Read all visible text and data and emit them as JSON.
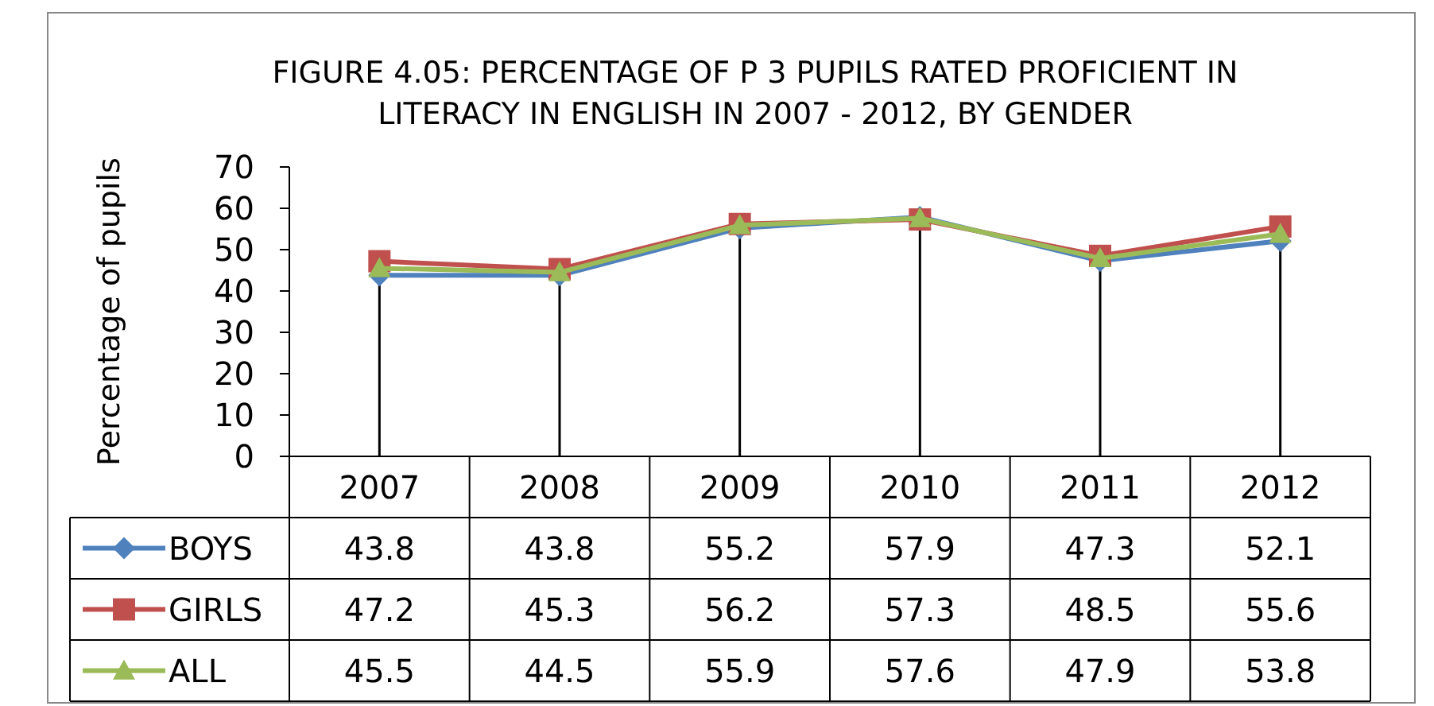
{
  "chart_data": {
    "type": "line",
    "title": "FIGURE 4.05: PERCENTAGE OF P 3 PUPILS RATED PROFICIENT IN\nLITERACY IN ENGLISH IN 2007 - 2012, BY GENDER",
    "ylabel": "Percentage  of pupils",
    "categories": [
      "2007",
      "2008",
      "2009",
      "2010",
      "2011",
      "2012"
    ],
    "ylim": [
      0,
      70
    ],
    "yticks": [
      0,
      10,
      20,
      30,
      40,
      50,
      60,
      70
    ],
    "grid": false,
    "ref_lines": [
      {
        "axis": "x",
        "value": "2007",
        "color": "#000000"
      },
      {
        "axis": "x",
        "value": "2008",
        "color": "#000000"
      },
      {
        "axis": "x",
        "value": "2009",
        "color": "#000000"
      },
      {
        "axis": "x",
        "value": "2010",
        "color": "#000000"
      },
      {
        "axis": "x",
        "value": "2011",
        "color": "#000000"
      },
      {
        "axis": "x",
        "value": "2012",
        "color": "#000000"
      }
    ],
    "legend": "bottom",
    "data_labels": true,
    "series": [
      {
        "name": "BOYS",
        "color": "#4f81bd",
        "marker": "diamond",
        "values": [
          43.8,
          43.8,
          55.2,
          57.9,
          47.3,
          52.1
        ]
      },
      {
        "name": "GIRLS",
        "color": "#c0504d",
        "marker": "square",
        "values": [
          47.2,
          45.3,
          56.2,
          57.3,
          48.5,
          55.6
        ]
      },
      {
        "name": "ALL",
        "color": "#9bbb59",
        "marker": "triangle",
        "values": [
          45.5,
          44.5,
          55.9,
          57.6,
          47.9,
          53.8
        ]
      }
    ]
  }
}
